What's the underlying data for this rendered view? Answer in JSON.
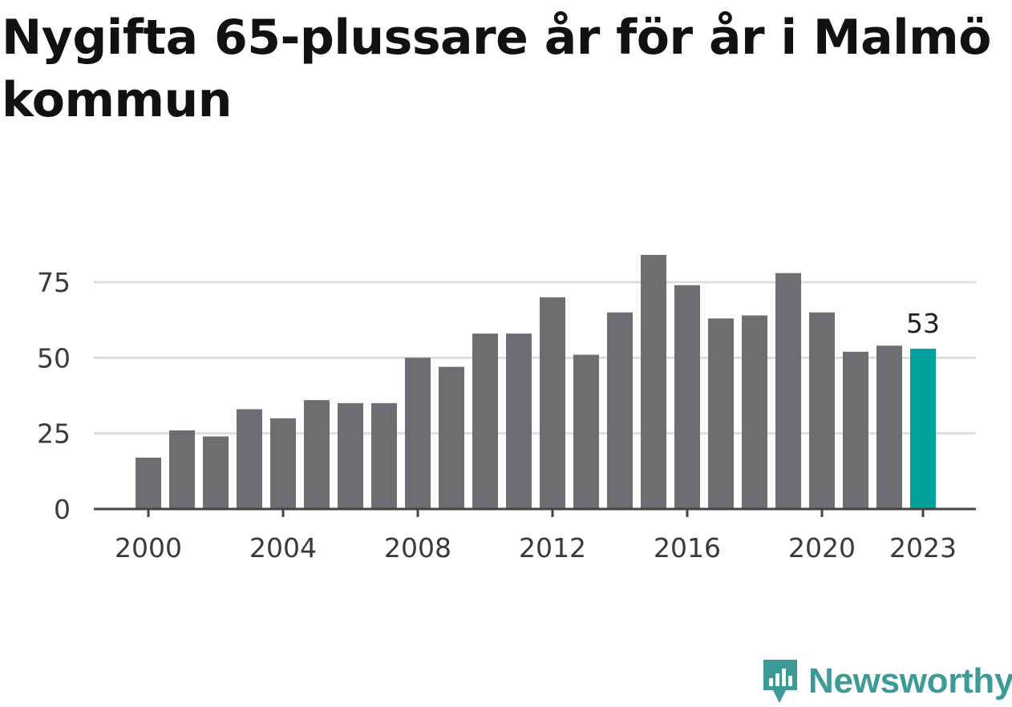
{
  "title": "Nygifta 65-plussare år för år i Malmö kommun",
  "brand": {
    "name": "Newsworthy",
    "color": "#3d9b97"
  },
  "colors": {
    "bar": "#6e6d74",
    "highlight": "#00a19a",
    "grid": "#dddddd",
    "axis": "#444444"
  },
  "chart_data": {
    "type": "bar",
    "title": "Nygifta 65-plussare år för år i Malmö kommun",
    "xlabel": "",
    "ylabel": "",
    "categories": [
      "2000",
      "2001",
      "2002",
      "2003",
      "2004",
      "2005",
      "2006",
      "2007",
      "2008",
      "2009",
      "2010",
      "2011",
      "2012",
      "2013",
      "2014",
      "2015",
      "2016",
      "2017",
      "2018",
      "2019",
      "2020",
      "2021",
      "2022",
      "2023"
    ],
    "values": [
      17,
      26,
      24,
      33,
      30,
      36,
      35,
      35,
      50,
      47,
      58,
      58,
      70,
      51,
      65,
      84,
      74,
      63,
      64,
      78,
      65,
      52,
      54,
      53
    ],
    "highlight_index": 23,
    "highlight_label": "53",
    "ylim": [
      0,
      85
    ],
    "yticks": [
      0,
      25,
      50,
      75
    ],
    "xtick_labels": [
      "2000",
      "2004",
      "2008",
      "2012",
      "2016",
      "2020",
      "2023"
    ],
    "grid": true,
    "legend": "none"
  }
}
